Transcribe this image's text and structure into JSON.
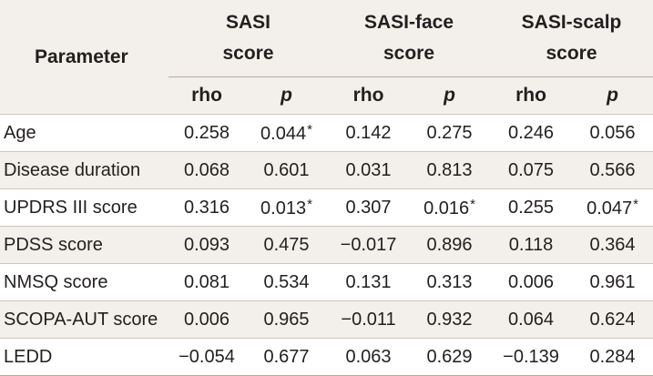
{
  "table": {
    "param_header": "Parameter",
    "groups": [
      {
        "line1": "SASI",
        "line2": "score"
      },
      {
        "line1": "SASI-face",
        "line2": "score"
      },
      {
        "line1": "SASI-scalp",
        "line2": "score"
      }
    ],
    "sub_rho": "rho",
    "sub_p": "p",
    "rows": [
      {
        "name": "Age",
        "v": [
          "0.258",
          "0.044",
          "0.142",
          "0.275",
          "0.246",
          "0.056"
        ],
        "star": [
          "",
          "*",
          "",
          "",
          "",
          ""
        ]
      },
      {
        "name": "Disease duration",
        "v": [
          "0.068",
          "0.601",
          "0.031",
          "0.813",
          "0.075",
          "0.566"
        ],
        "star": [
          "",
          "",
          "",
          "",
          "",
          ""
        ]
      },
      {
        "name": "UPDRS III score",
        "v": [
          "0.316",
          "0.013",
          "0.307",
          "0.016",
          "0.255",
          "0.047"
        ],
        "star": [
          "",
          "*",
          "",
          "*",
          "",
          "*"
        ]
      },
      {
        "name": "PDSS score",
        "v": [
          "0.093",
          "0.475",
          "−0.017",
          "0.896",
          "0.118",
          "0.364"
        ],
        "star": [
          "",
          "",
          "",
          "",
          "",
          ""
        ]
      },
      {
        "name": "NMSQ score",
        "v": [
          "0.081",
          "0.534",
          "0.131",
          "0.313",
          "0.006",
          "0.961"
        ],
        "star": [
          "",
          "",
          "",
          "",
          "",
          ""
        ]
      },
      {
        "name": "SCOPA-AUT score",
        "v": [
          "0.006",
          "0.965",
          "−0.011",
          "0.932",
          "0.064",
          "0.624"
        ],
        "star": [
          "",
          "",
          "",
          "",
          "",
          ""
        ]
      },
      {
        "name": "LEDD",
        "v": [
          "−0.054",
          "0.677",
          "0.063",
          "0.629",
          "−0.139",
          "0.284"
        ],
        "star": [
          "",
          "",
          "",
          "",
          "",
          ""
        ]
      }
    ]
  }
}
